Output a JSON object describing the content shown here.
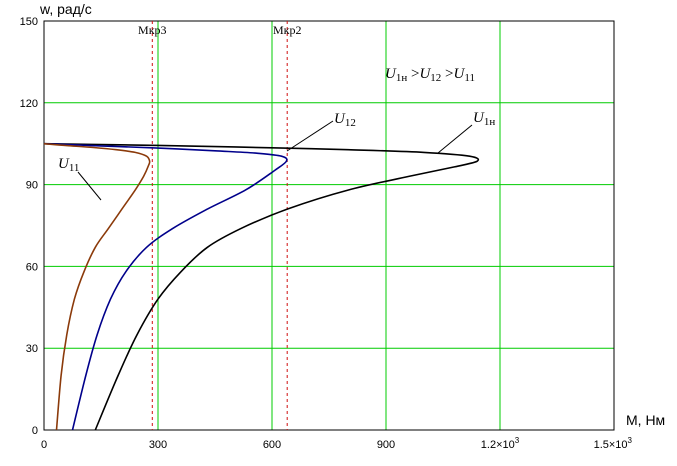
{
  "chart_data": {
    "type": "line",
    "title": "",
    "xlabel": "M, Нм",
    "ylabel": "w, рад/с",
    "xlim": [
      0,
      1500
    ],
    "ylim": [
      0,
      150
    ],
    "grid": true,
    "x_ticks": [
      {
        "value": 0,
        "label": "0"
      },
      {
        "value": 300,
        "label": "300"
      },
      {
        "value": 600,
        "label": "600"
      },
      {
        "value": 900,
        "label": "900"
      },
      {
        "value": 1200,
        "label": "1.2×10",
        "exp": "3"
      },
      {
        "value": 1500,
        "label": "1.5×10",
        "exp": "3"
      }
    ],
    "y_ticks": [
      {
        "value": 0,
        "label": "0"
      },
      {
        "value": 30,
        "label": "30"
      },
      {
        "value": 60,
        "label": "60"
      },
      {
        "value": 90,
        "label": "90"
      },
      {
        "value": 120,
        "label": "120"
      },
      {
        "value": 150,
        "label": "150"
      }
    ],
    "vlines": [
      {
        "name": "Мкр3",
        "x": 285,
        "color": "#d01010"
      },
      {
        "name": "Мкр2",
        "x": 640,
        "color": "#d01010"
      }
    ],
    "annotation": {
      "main": "U",
      "sub1": "1н",
      "op1": " >",
      "sub2": "12",
      "op2": " >",
      "sub3": "11"
    },
    "series": [
      {
        "name": "U",
        "sub": "1н",
        "color": "#000000",
        "points": [
          [
            135,
            0
          ],
          [
            195,
            20
          ],
          [
            245,
            35
          ],
          [
            300,
            48
          ],
          [
            360,
            58
          ],
          [
            430,
            67
          ],
          [
            520,
            74
          ],
          [
            640,
            81
          ],
          [
            800,
            88
          ],
          [
            960,
            93
          ],
          [
            1080,
            96.5
          ],
          [
            1140,
            98.6
          ],
          [
            1120,
            100.4
          ],
          [
            1000,
            101.8
          ],
          [
            800,
            102.8
          ],
          [
            600,
            103.5
          ],
          [
            400,
            104.1
          ],
          [
            200,
            104.6
          ],
          [
            0,
            105
          ]
        ]
      },
      {
        "name": "U",
        "sub": "12",
        "color": "#00008b",
        "points": [
          [
            75,
            0
          ],
          [
            110,
            20
          ],
          [
            140,
            35
          ],
          [
            175,
            48
          ],
          [
            215,
            58
          ],
          [
            270,
            67
          ],
          [
            340,
            74
          ],
          [
            430,
            81
          ],
          [
            530,
            88
          ],
          [
            605,
            95
          ],
          [
            638,
            98.6
          ],
          [
            625,
            100.4
          ],
          [
            560,
            101.5
          ],
          [
            450,
            102.4
          ],
          [
            300,
            103.4
          ],
          [
            150,
            104.2
          ],
          [
            0,
            105
          ]
        ]
      },
      {
        "name": "U",
        "sub": "11",
        "color": "#8b3a0a",
        "points": [
          [
            33,
            0
          ],
          [
            45,
            20
          ],
          [
            60,
            35
          ],
          [
            80,
            48
          ],
          [
            105,
            58
          ],
          [
            135,
            67
          ],
          [
            170,
            74
          ],
          [
            205,
            81
          ],
          [
            240,
            88
          ],
          [
            262,
            93
          ],
          [
            275,
            97
          ],
          [
            278,
            98.6
          ],
          [
            270,
            100.4
          ],
          [
            240,
            101.8
          ],
          [
            190,
            102.8
          ],
          [
            130,
            103.6
          ],
          [
            60,
            104.3
          ],
          [
            0,
            105
          ]
        ]
      }
    ]
  }
}
